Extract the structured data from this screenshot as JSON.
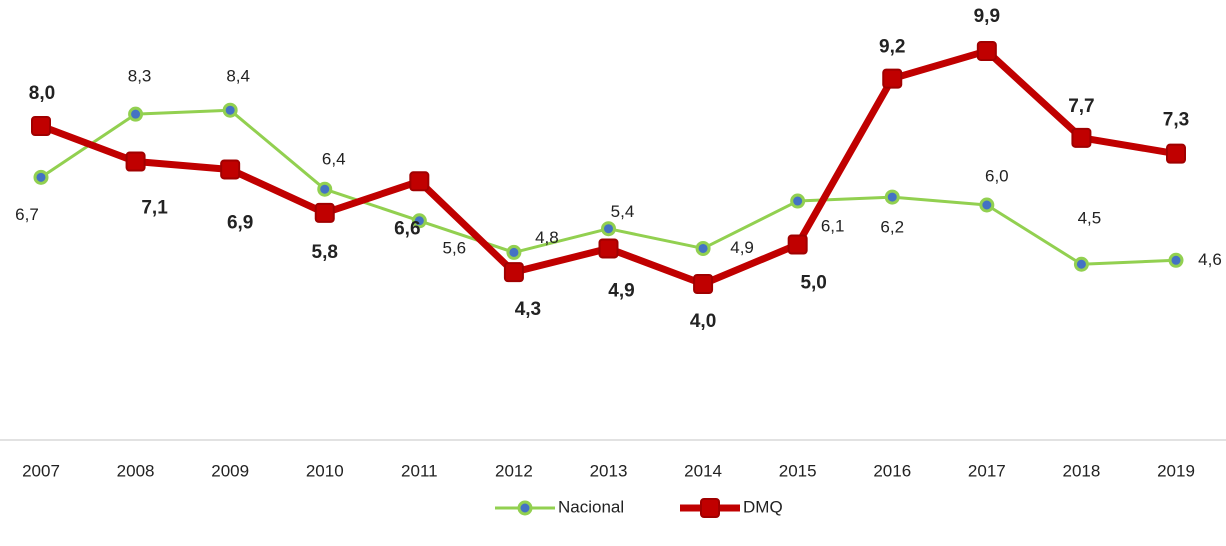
{
  "chart_data": {
    "type": "line",
    "categories": [
      "2007",
      "2008",
      "2009",
      "2010",
      "2011",
      "2012",
      "2013",
      "2014",
      "2015",
      "2016",
      "2017",
      "2018",
      "2019"
    ],
    "series": [
      {
        "name": "Nacional",
        "color": "#92d050",
        "marker_color": "#4472c4",
        "values": [
          6.7,
          8.3,
          8.4,
          6.4,
          5.6,
          4.8,
          5.4,
          4.9,
          6.1,
          6.2,
          6.0,
          4.5,
          4.6
        ],
        "value_labels": [
          "6,7",
          "8,3",
          "8,4",
          "6,4",
          "5,6",
          "4,8",
          "5,4",
          "4,9",
          "6,1",
          "6,2",
          "6,0",
          "4,5",
          "4,6"
        ]
      },
      {
        "name": "DMQ",
        "color": "#c00000",
        "values": [
          8.0,
          7.1,
          6.9,
          5.8,
          6.6,
          4.3,
          4.9,
          4.0,
          5.0,
          9.2,
          9.9,
          7.7,
          7.3
        ],
        "value_labels": [
          "8,0",
          "7,1",
          "6,9",
          "5,8",
          "6,6",
          "4,3",
          "4,9",
          "4,0",
          "5,0",
          "9,2",
          "9,9",
          "7,7",
          "7,3"
        ]
      }
    ],
    "ylim": [
      0,
      11
    ],
    "legend": "bottom"
  }
}
